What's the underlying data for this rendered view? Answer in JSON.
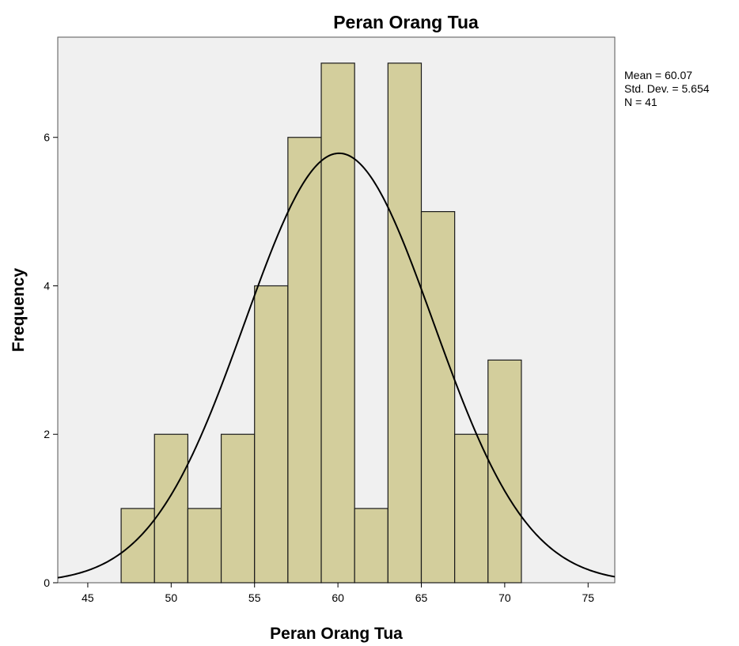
{
  "chart_data": {
    "type": "bar",
    "subtype": "histogram",
    "title": "Peran Orang Tua",
    "xlabel": "Peran Orang Tua",
    "ylabel": "Frequency",
    "xlim": [
      43.2,
      76.6
    ],
    "ylim": [
      0,
      7.35
    ],
    "xticks": [
      "45",
      "50",
      "55",
      "60",
      "65",
      "70",
      "75"
    ],
    "yticks": [
      "0",
      "2",
      "4",
      "6"
    ],
    "bins": [
      {
        "start": 47,
        "end": 49,
        "value": 1
      },
      {
        "start": 49,
        "end": 51,
        "value": 2
      },
      {
        "start": 51,
        "end": 53,
        "value": 1
      },
      {
        "start": 53,
        "end": 55,
        "value": 2
      },
      {
        "start": 55,
        "end": 57,
        "value": 4
      },
      {
        "start": 57,
        "end": 59,
        "value": 6
      },
      {
        "start": 59,
        "end": 61,
        "value": 7
      },
      {
        "start": 61,
        "end": 63,
        "value": 1
      },
      {
        "start": 63,
        "end": 65,
        "value": 7
      },
      {
        "start": 65,
        "end": 67,
        "value": 5
      },
      {
        "start": 67,
        "end": 69,
        "value": 2
      },
      {
        "start": 69,
        "end": 71,
        "value": 3
      }
    ],
    "normal_curve": {
      "mean": 60.07,
      "sd": 5.654,
      "n": 41,
      "bin_width": 2
    },
    "stats_legend": [
      "Mean = 60.07",
      "Std. Dev. = 5.654",
      "N = 41"
    ],
    "grid": false,
    "colors": {
      "bar_fill": "#d3ce9c",
      "bar_stroke": "#1a1a1a",
      "plot_bg": "#f0f0f0",
      "curve": "#000000"
    }
  }
}
